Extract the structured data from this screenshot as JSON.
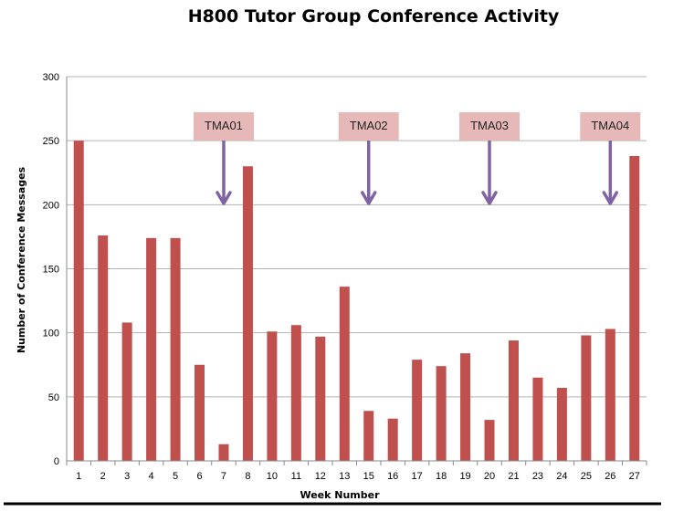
{
  "chart_data": {
    "type": "bar",
    "title": "H800 Tutor Group Conference Activity",
    "xlabel": "Week Number",
    "ylabel": "Number of Conference Messages",
    "ylim": [
      0,
      300
    ],
    "yticks": [
      0,
      50,
      100,
      150,
      200,
      250,
      300
    ],
    "grid": true,
    "categories": [
      "1",
      "2",
      "3",
      "4",
      "5",
      "6",
      "7",
      "8",
      "10",
      "11",
      "12",
      "13",
      "15",
      "16",
      "17",
      "18",
      "19",
      "20",
      "21",
      "23",
      "24",
      "25",
      "26",
      "27"
    ],
    "series": [
      {
        "values": [
          250,
          176,
          108,
          174,
          174,
          75,
          13,
          230,
          101,
          106,
          97,
          136,
          39,
          33,
          79,
          74,
          84,
          32,
          94,
          65,
          57,
          98,
          103,
          238
        ],
        "color": "#c0504d"
      }
    ],
    "annotations": [
      {
        "label": "TMA01",
        "category": "7"
      },
      {
        "label": "TMA02",
        "category": "15"
      },
      {
        "label": "TMA03",
        "category": "20"
      },
      {
        "label": "TMA04",
        "category": "26"
      }
    ],
    "colors": {
      "bar": "#c0504d",
      "annotation_box": "#e6b9b8",
      "arrow": "#8064a2",
      "gridline": "#b3b3b3"
    }
  }
}
